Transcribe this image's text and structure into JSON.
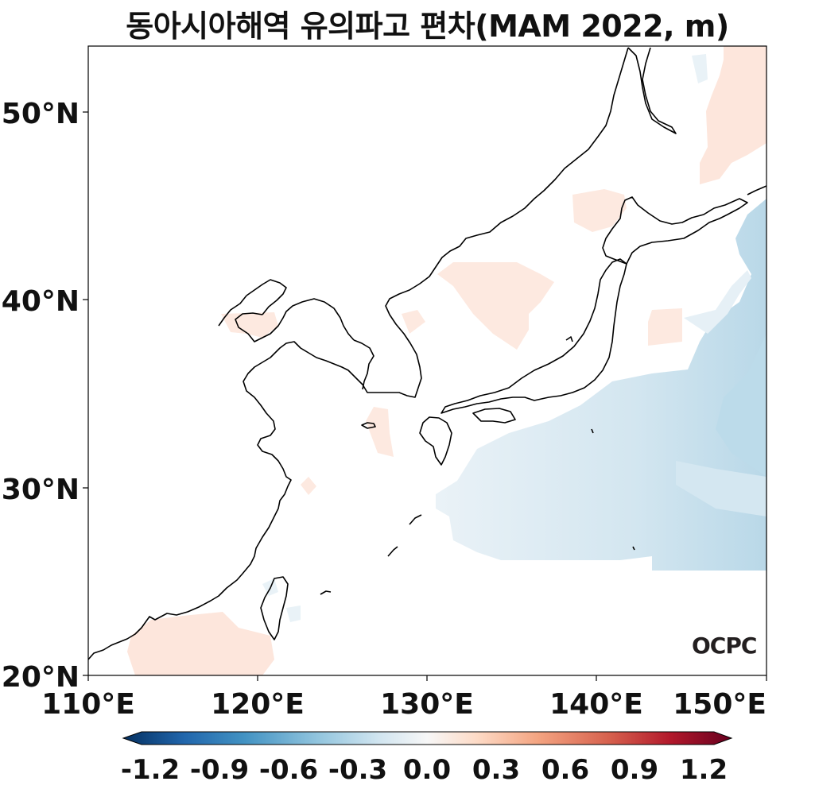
{
  "title": "동아시아해역 유의파고 편차(MAM 2022, m)",
  "map": {
    "lat_ticks": [
      "50°N",
      "40°N",
      "30°N",
      "20°N"
    ],
    "lon_ticks": [
      "110°E",
      "120°E",
      "130°E",
      "140°E",
      "150°E"
    ],
    "lon_range": [
      110,
      150
    ],
    "lat_range": [
      20,
      53.5
    ]
  },
  "colorbar": {
    "labels": [
      "-1.2",
      "-0.9",
      "-0.6",
      "-0.3",
      "0.0",
      "0.3",
      "0.6",
      "0.9",
      "1.2"
    ],
    "colors": [
      "#053061",
      "#2166ac",
      "#4393c3",
      "#92c5de",
      "#d1e5f0",
      "#f7f7f7",
      "#fddbc7",
      "#f4a582",
      "#d6604d",
      "#b2182b",
      "#67001f"
    ]
  },
  "logo": "OCPC"
}
